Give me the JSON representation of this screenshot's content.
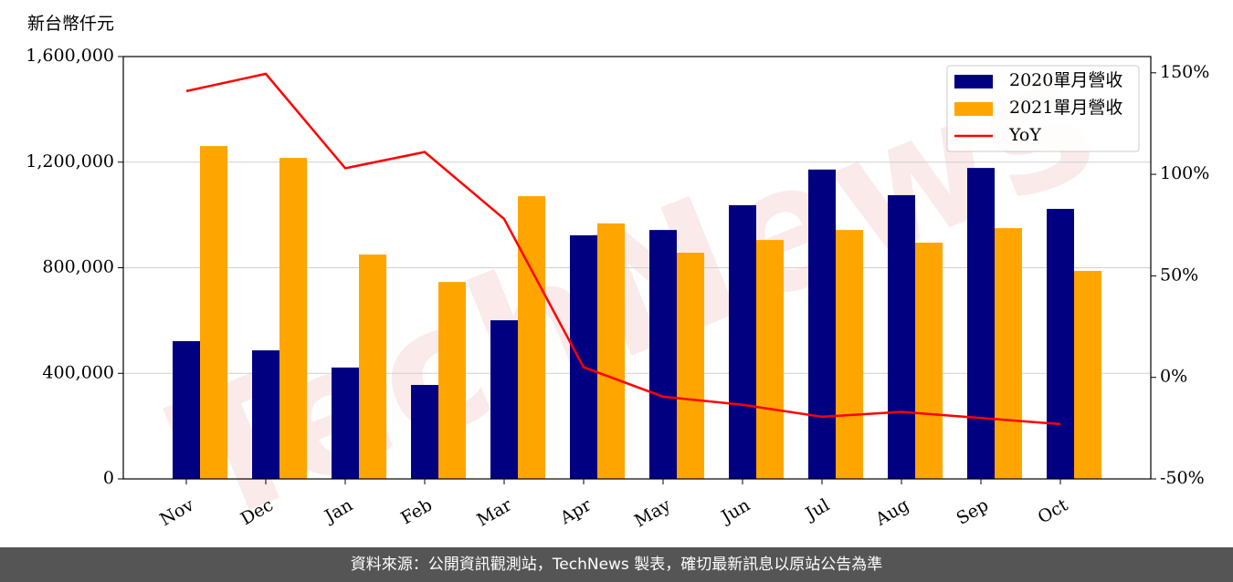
{
  "chart_data": {
    "type": "bar",
    "y_label": "新台幣仟元",
    "watermark": "TechNews",
    "categories": [
      "Nov",
      "Dec",
      "Jan",
      "Feb",
      "Mar",
      "Apr",
      "May",
      "Jun",
      "Jul",
      "Aug",
      "Sep",
      "Oct"
    ],
    "series": [
      {
        "name": "2020單月營收",
        "color": "#000080",
        "values": [
          522000,
          487000,
          422000,
          356000,
          601000,
          923000,
          943000,
          1037000,
          1172000,
          1075000,
          1178000,
          1023000
        ]
      },
      {
        "name": "2021單月營收",
        "color": "#ffa500",
        "values": [
          1261000,
          1216000,
          850000,
          746000,
          1071000,
          968000,
          857000,
          905000,
          943000,
          895000,
          950000,
          788000
        ]
      },
      {
        "name": "YoY",
        "color": "#ff0000",
        "type": "line",
        "axis": "y2",
        "values": [
          141,
          149.5,
          103,
          111,
          78,
          5,
          -9.5,
          -13.5,
          -19.4,
          -17,
          -20,
          -23
        ]
      }
    ],
    "ylim": [
      0,
      1600000
    ],
    "yticks": [
      {
        "value": 0,
        "label": "0"
      },
      {
        "value": 400000,
        "label": "400,000"
      },
      {
        "value": 800000,
        "label": "800,000"
      },
      {
        "value": 1200000,
        "label": "1,200,000"
      },
      {
        "value": 1600000,
        "label": "1,600,000"
      }
    ],
    "y2lim": [
      -50,
      158
    ],
    "y2ticks": [
      {
        "value": -50,
        "label": "-50%"
      },
      {
        "value": 0,
        "label": "0%"
      },
      {
        "value": 50,
        "label": "50%"
      },
      {
        "value": 100,
        "label": "100%"
      },
      {
        "value": 150,
        "label": "150%"
      }
    ],
    "grid": true,
    "legend": "upper right"
  },
  "footer": "資料來源：公開資訊觀測站，TechNews 製表，確切最新訊息以原站公告為準"
}
